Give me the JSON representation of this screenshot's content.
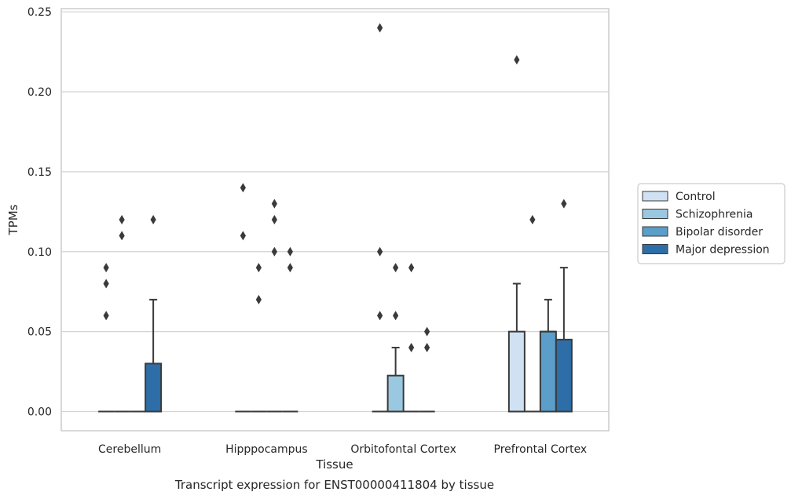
{
  "chart_data": {
    "type": "box",
    "title": "",
    "caption": "Transcript expression for ENST00000411804 by tissue",
    "xlabel": "Tissue",
    "ylabel": "TPMs",
    "ylim": [
      -0.012,
      0.252
    ],
    "yticks": [
      "0.00",
      "0.05",
      "0.10",
      "0.15",
      "0.20",
      "0.25"
    ],
    "ytick_values": [
      0,
      0.05,
      0.1,
      0.15,
      0.2,
      0.25
    ],
    "grid": true,
    "legend_placement": "right",
    "categories": [
      "Cerebellum",
      "Hipppocampus",
      "Orbitofontal Cortex",
      "Prefrontal Cortex"
    ],
    "series": [
      {
        "name": "Control",
        "color": "#cfe1f2",
        "boxes": [
          {
            "q1": 0,
            "median": 0,
            "q3": 0,
            "whisker_low": 0,
            "whisker_high": 0,
            "outliers": [
              0.06,
              0.08,
              0.09
            ]
          },
          {
            "q1": 0,
            "median": 0,
            "q3": 0,
            "whisker_low": 0,
            "whisker_high": 0,
            "outliers": [
              0.11,
              0.14
            ]
          },
          {
            "q1": 0,
            "median": 0,
            "q3": 0,
            "whisker_low": 0,
            "whisker_high": 0,
            "outliers": [
              0.06,
              0.1,
              0.24
            ]
          },
          {
            "q1": 0,
            "median": 0,
            "q3": 0.05,
            "whisker_low": 0,
            "whisker_high": 0.08,
            "outliers": [
              0.22
            ]
          }
        ]
      },
      {
        "name": "Schizophrenia",
        "color": "#9ac8e0",
        "boxes": [
          {
            "q1": 0,
            "median": 0,
            "q3": 0,
            "whisker_low": 0,
            "whisker_high": 0,
            "outliers": [
              0.11,
              0.12
            ]
          },
          {
            "q1": 0,
            "median": 0,
            "q3": 0,
            "whisker_low": 0,
            "whisker_high": 0,
            "outliers": [
              0.07,
              0.09
            ]
          },
          {
            "q1": 0,
            "median": 0,
            "q3": 0.0225,
            "whisker_low": 0,
            "whisker_high": 0.04,
            "outliers": [
              0.06,
              0.09
            ]
          },
          {
            "q1": 0,
            "median": 0,
            "q3": 0,
            "whisker_low": 0,
            "whisker_high": 0,
            "outliers": [
              0.12
            ]
          }
        ]
      },
      {
        "name": "Bipolar disorder",
        "color": "#5a9ec9",
        "boxes": [
          {
            "q1": 0,
            "median": 0,
            "q3": 0,
            "whisker_low": 0,
            "whisker_high": 0,
            "outliers": []
          },
          {
            "q1": 0,
            "median": 0,
            "q3": 0,
            "whisker_low": 0,
            "whisker_high": 0,
            "outliers": [
              0.1,
              0.12,
              0.13
            ]
          },
          {
            "q1": 0,
            "median": 0,
            "q3": 0,
            "whisker_low": 0,
            "whisker_high": 0,
            "outliers": [
              0.04,
              0.09
            ]
          },
          {
            "q1": 0,
            "median": 0.05,
            "q3": 0.05,
            "whisker_low": 0,
            "whisker_high": 0.07,
            "outliers": []
          }
        ]
      },
      {
        "name": "Major depression",
        "color": "#2d6ea8",
        "boxes": [
          {
            "q1": 0,
            "median": 0,
            "q3": 0.03,
            "whisker_low": 0,
            "whisker_high": 0.07,
            "outliers": [
              0.12
            ]
          },
          {
            "q1": 0,
            "median": 0,
            "q3": 0,
            "whisker_low": 0,
            "whisker_high": 0,
            "outliers": [
              0.09,
              0.1
            ]
          },
          {
            "q1": 0,
            "median": 0,
            "q3": 0,
            "whisker_low": 0,
            "whisker_high": 0,
            "outliers": [
              0.04,
              0.05
            ]
          },
          {
            "q1": 0,
            "median": 0,
            "q3": 0.045,
            "whisker_low": 0,
            "whisker_high": 0.09,
            "outliers": [
              0.13
            ]
          }
        ]
      }
    ]
  }
}
